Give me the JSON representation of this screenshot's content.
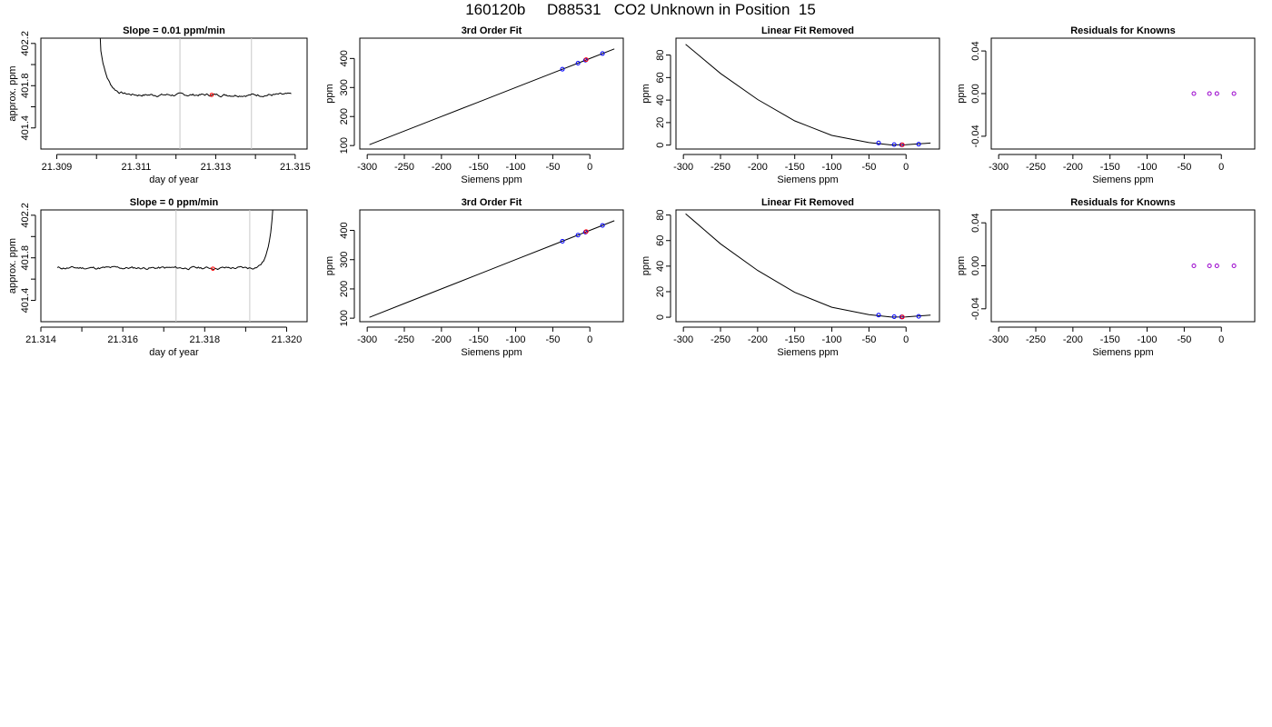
{
  "page_title": "160120b     D88531   CO2 Unknown in Position  15",
  "colors": {
    "line": "#000000",
    "vline": "#c8c8c8",
    "blue": "#0000ff",
    "red": "#ff0000",
    "purple": "#9900cc"
  },
  "chart_data": [
    {
      "id": "slope-top",
      "type": "line",
      "title": "Slope =  0.01  ppm/min",
      "xlabel": "day of year",
      "ylabel": "approx. ppm",
      "xlim": [
        21.3086,
        21.3153
      ],
      "ylim": [
        401.2,
        402.25
      ],
      "xticks": [
        21.309,
        21.31,
        21.311,
        21.312,
        21.313,
        21.314,
        21.315
      ],
      "xtick_labels": [
        "21.309",
        "",
        "21.311",
        "",
        "21.313",
        "",
        "21.315"
      ],
      "yticks": [
        401.4,
        401.6,
        401.8,
        402.0,
        402.2
      ],
      "ytick_labels": [
        "401.4",
        "",
        "401.8",
        "",
        "402.2"
      ],
      "vlines": [
        21.3121,
        21.3139
      ],
      "marker": {
        "x": 21.3129,
        "y": 401.713,
        "color": "red"
      },
      "trace": {
        "x_start": 21.31,
        "x_end": 21.3149,
        "baseline": 401.713,
        "spike": "start",
        "noise": 0.012,
        "seed": 7
      }
    },
    {
      "id": "fit-top",
      "type": "scatter-line",
      "title": "3rd Order Fit",
      "xlabel": "Siemens ppm",
      "ylabel": "ppm",
      "xlim": [
        -310,
        45
      ],
      "ylim": [
        88,
        470
      ],
      "xticks": [
        -300,
        -250,
        -200,
        -150,
        -100,
        -50,
        0
      ],
      "xtick_labels": [
        "-300",
        "-250",
        "-200",
        "-150",
        "-100",
        "-50",
        "0"
      ],
      "yticks": [
        100,
        200,
        300,
        400
      ],
      "ytick_labels": [
        "100",
        "200",
        "300",
        "400"
      ],
      "curve": {
        "x": [
          -297,
          -250,
          -200,
          -150,
          -100,
          -50,
          0,
          33
        ],
        "y": [
          103,
          150,
          200,
          250,
          300,
          350,
          400,
          433
        ]
      },
      "points": [
        {
          "x": -37,
          "y": 363,
          "color": "blue"
        },
        {
          "x": -16,
          "y": 384,
          "color": "blue"
        },
        {
          "x": -6,
          "y": 394,
          "color": "blue"
        },
        {
          "x": 17,
          "y": 417,
          "color": "blue"
        },
        {
          "x": -5,
          "y": 396,
          "color": "red"
        }
      ]
    },
    {
      "id": "lin-top",
      "type": "scatter-line",
      "title": "Linear Fit Removed",
      "xlabel": "Siemens ppm",
      "ylabel": "ppm",
      "xlim": [
        -310,
        45
      ],
      "ylim": [
        -3.5,
        95
      ],
      "xticks": [
        -300,
        -250,
        -200,
        -150,
        -100,
        -50,
        0
      ],
      "xtick_labels": [
        "-300",
        "-250",
        "-200",
        "-150",
        "-100",
        "-50",
        "0"
      ],
      "yticks": [
        0,
        20,
        40,
        60,
        80
      ],
      "ytick_labels": [
        "0",
        "20",
        "40",
        "60",
        "80"
      ],
      "curve": {
        "x": [
          -297,
          -250,
          -200,
          -150,
          -100,
          -50,
          -20,
          0,
          33
        ],
        "y": [
          89.6,
          63.7,
          40.5,
          21.5,
          8.6,
          2.2,
          0.1,
          0.3,
          1.8
        ]
      },
      "points": [
        {
          "x": -37,
          "y": 1.9,
          "color": "blue"
        },
        {
          "x": -16,
          "y": 0.4,
          "color": "blue"
        },
        {
          "x": -6,
          "y": 0.2,
          "color": "blue"
        },
        {
          "x": 17,
          "y": 0.8,
          "color": "blue"
        },
        {
          "x": -5,
          "y": 0.2,
          "color": "red"
        }
      ]
    },
    {
      "id": "res-top",
      "type": "scatter",
      "title": "Residuals for Knowns",
      "xlabel": "Siemens ppm",
      "ylabel": "ppm",
      "xlim": [
        -310,
        45
      ],
      "ylim": [
        -0.052,
        0.052
      ],
      "xticks": [
        -300,
        -250,
        -200,
        -150,
        -100,
        -50,
        0
      ],
      "xtick_labels": [
        "-300",
        "-250",
        "-200",
        "-150",
        "-100",
        "-50",
        "0"
      ],
      "yticks": [
        -0.04,
        0.0,
        0.04
      ],
      "ytick_labels": [
        "-0.04",
        "0.00",
        "0.04"
      ],
      "points": [
        {
          "x": -37,
          "y": 0.0,
          "color": "purple"
        },
        {
          "x": -16,
          "y": 0.0,
          "color": "purple"
        },
        {
          "x": -6,
          "y": 0.0,
          "color": "purple"
        },
        {
          "x": 17,
          "y": 0.0,
          "color": "purple"
        }
      ]
    },
    {
      "id": "slope-bottom",
      "type": "line",
      "title": "Slope =  0  ppm/min",
      "xlabel": "day of year",
      "ylabel": "approx. ppm",
      "xlim": [
        21.314,
        21.3205
      ],
      "ylim": [
        401.2,
        402.25
      ],
      "xticks": [
        21.314,
        21.315,
        21.316,
        21.317,
        21.318,
        21.319,
        21.32
      ],
      "xtick_labels": [
        "21.314",
        "",
        "21.316",
        "",
        "21.318",
        "",
        "21.320"
      ],
      "yticks": [
        401.4,
        401.6,
        401.8,
        402.0,
        402.2
      ],
      "ytick_labels": [
        "401.4",
        "",
        "401.8",
        "",
        "402.2"
      ],
      "vlines": [
        21.3173,
        21.3191
      ],
      "marker": {
        "x": 21.3182,
        "y": 401.698,
        "color": "red"
      },
      "trace": {
        "x_start": 21.3144,
        "x_end": 21.3197,
        "baseline": 401.705,
        "spike": "end",
        "noise": 0.012,
        "seed": 11
      }
    },
    {
      "id": "fit-bottom",
      "type": "scatter-line",
      "title": "3rd Order Fit",
      "xlabel": "Siemens ppm",
      "ylabel": "ppm",
      "xlim": [
        -310,
        45
      ],
      "ylim": [
        88,
        470
      ],
      "xticks": [
        -300,
        -250,
        -200,
        -150,
        -100,
        -50,
        0
      ],
      "xtick_labels": [
        "-300",
        "-250",
        "-200",
        "-150",
        "-100",
        "-50",
        "0"
      ],
      "yticks": [
        100,
        200,
        300,
        400
      ],
      "ytick_labels": [
        "100",
        "200",
        "300",
        "400"
      ],
      "curve": {
        "x": [
          -297,
          -250,
          -200,
          -150,
          -100,
          -50,
          0,
          33
        ],
        "y": [
          103,
          150,
          200,
          250,
          300,
          350,
          400,
          433
        ]
      },
      "points": [
        {
          "x": -37,
          "y": 363,
          "color": "blue"
        },
        {
          "x": -16,
          "y": 384,
          "color": "blue"
        },
        {
          "x": -6,
          "y": 394,
          "color": "blue"
        },
        {
          "x": 17,
          "y": 417,
          "color": "blue"
        },
        {
          "x": -5,
          "y": 396,
          "color": "red"
        }
      ]
    },
    {
      "id": "lin-bottom",
      "type": "scatter-line",
      "title": "Linear Fit Removed",
      "xlabel": "Siemens ppm",
      "ylabel": "ppm",
      "xlim": [
        -310,
        45
      ],
      "ylim": [
        -3.5,
        84
      ],
      "xticks": [
        -300,
        -250,
        -200,
        -150,
        -100,
        -50,
        0
      ],
      "xtick_labels": [
        "-300",
        "-250",
        "-200",
        "-150",
        "-100",
        "-50",
        "0"
      ],
      "yticks": [
        0,
        20,
        40,
        60,
        80
      ],
      "ytick_labels": [
        "0",
        "20",
        "40",
        "60",
        "80"
      ],
      "curve": {
        "x": [
          -297,
          -250,
          -200,
          -150,
          -100,
          -50,
          -20,
          0,
          33
        ],
        "y": [
          81.0,
          57.5,
          36.6,
          19.5,
          7.8,
          2.0,
          0.1,
          0.3,
          1.6
        ]
      },
      "points": [
        {
          "x": -37,
          "y": 1.7,
          "color": "blue"
        },
        {
          "x": -16,
          "y": 0.4,
          "color": "blue"
        },
        {
          "x": -6,
          "y": 0.2,
          "color": "blue"
        },
        {
          "x": 17,
          "y": 0.7,
          "color": "blue"
        },
        {
          "x": -5,
          "y": 0.2,
          "color": "red"
        }
      ]
    },
    {
      "id": "res-bottom",
      "type": "scatter",
      "title": "Residuals for Knowns",
      "xlabel": "Siemens ppm",
      "ylabel": "ppm",
      "xlim": [
        -310,
        45
      ],
      "ylim": [
        -0.052,
        0.052
      ],
      "xticks": [
        -300,
        -250,
        -200,
        -150,
        -100,
        -50,
        0
      ],
      "xtick_labels": [
        "-300",
        "-250",
        "-200",
        "-150",
        "-100",
        "-50",
        "0"
      ],
      "yticks": [
        -0.04,
        0.0,
        0.04
      ],
      "ytick_labels": [
        "-0.04",
        "0.00",
        "0.04"
      ],
      "points": [
        {
          "x": -37,
          "y": 0.0,
          "color": "purple"
        },
        {
          "x": -16,
          "y": 0.0,
          "color": "purple"
        },
        {
          "x": -6,
          "y": 0.0,
          "color": "purple"
        },
        {
          "x": 17,
          "y": 0.0,
          "color": "purple"
        }
      ]
    }
  ]
}
